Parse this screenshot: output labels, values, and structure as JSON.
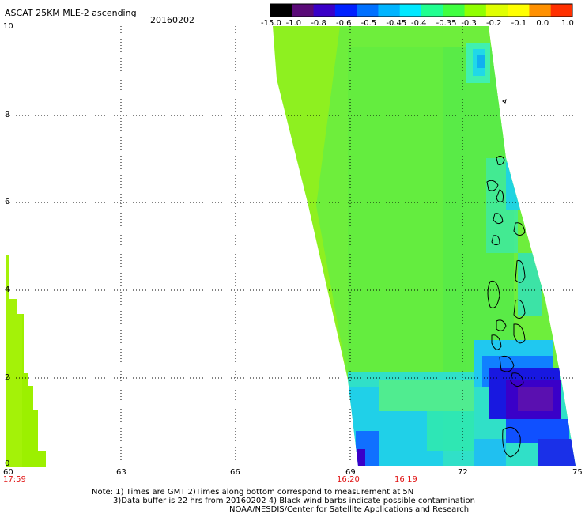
{
  "header": {
    "title": "ASCAT 25KM MLE-2 ascending",
    "date": "20160202"
  },
  "colorbar": {
    "labels": [
      "-15.0",
      "-1.0",
      "-0.8",
      "-0.6",
      "-0.5",
      "-0.45",
      "-0.4",
      "-0.35",
      "-0.3",
      "-0.2",
      "-0.1",
      "0.0",
      "1.0"
    ],
    "colors": [
      "#000000",
      "#5a0a78",
      "#3a00c8",
      "#0020ff",
      "#0070ff",
      "#00b4ff",
      "#00e8ff",
      "#20ff90",
      "#40ff40",
      "#90ff00",
      "#e0ff00",
      "#ffff00",
      "#ff9000",
      "#ff3000"
    ]
  },
  "axes": {
    "x_ticks": [
      "60",
      "63",
      "66",
      "69",
      "72",
      "75"
    ],
    "y_ticks": [
      "0",
      "2",
      "4",
      "6",
      "8",
      "10"
    ],
    "time_labels": [
      "17:59",
      "16:20",
      "16:19"
    ]
  },
  "notes": {
    "line1": "Note: 1) Times are GMT 2)Times along bottom correspond to measurement at 5N",
    "line2": "3)Data buffer is 22 hrs from 20160202 4) Black wind barbs indicate possible contamination",
    "line3": "NOAA/NESDIS/Center for Satellite Applications and Research"
  }
}
